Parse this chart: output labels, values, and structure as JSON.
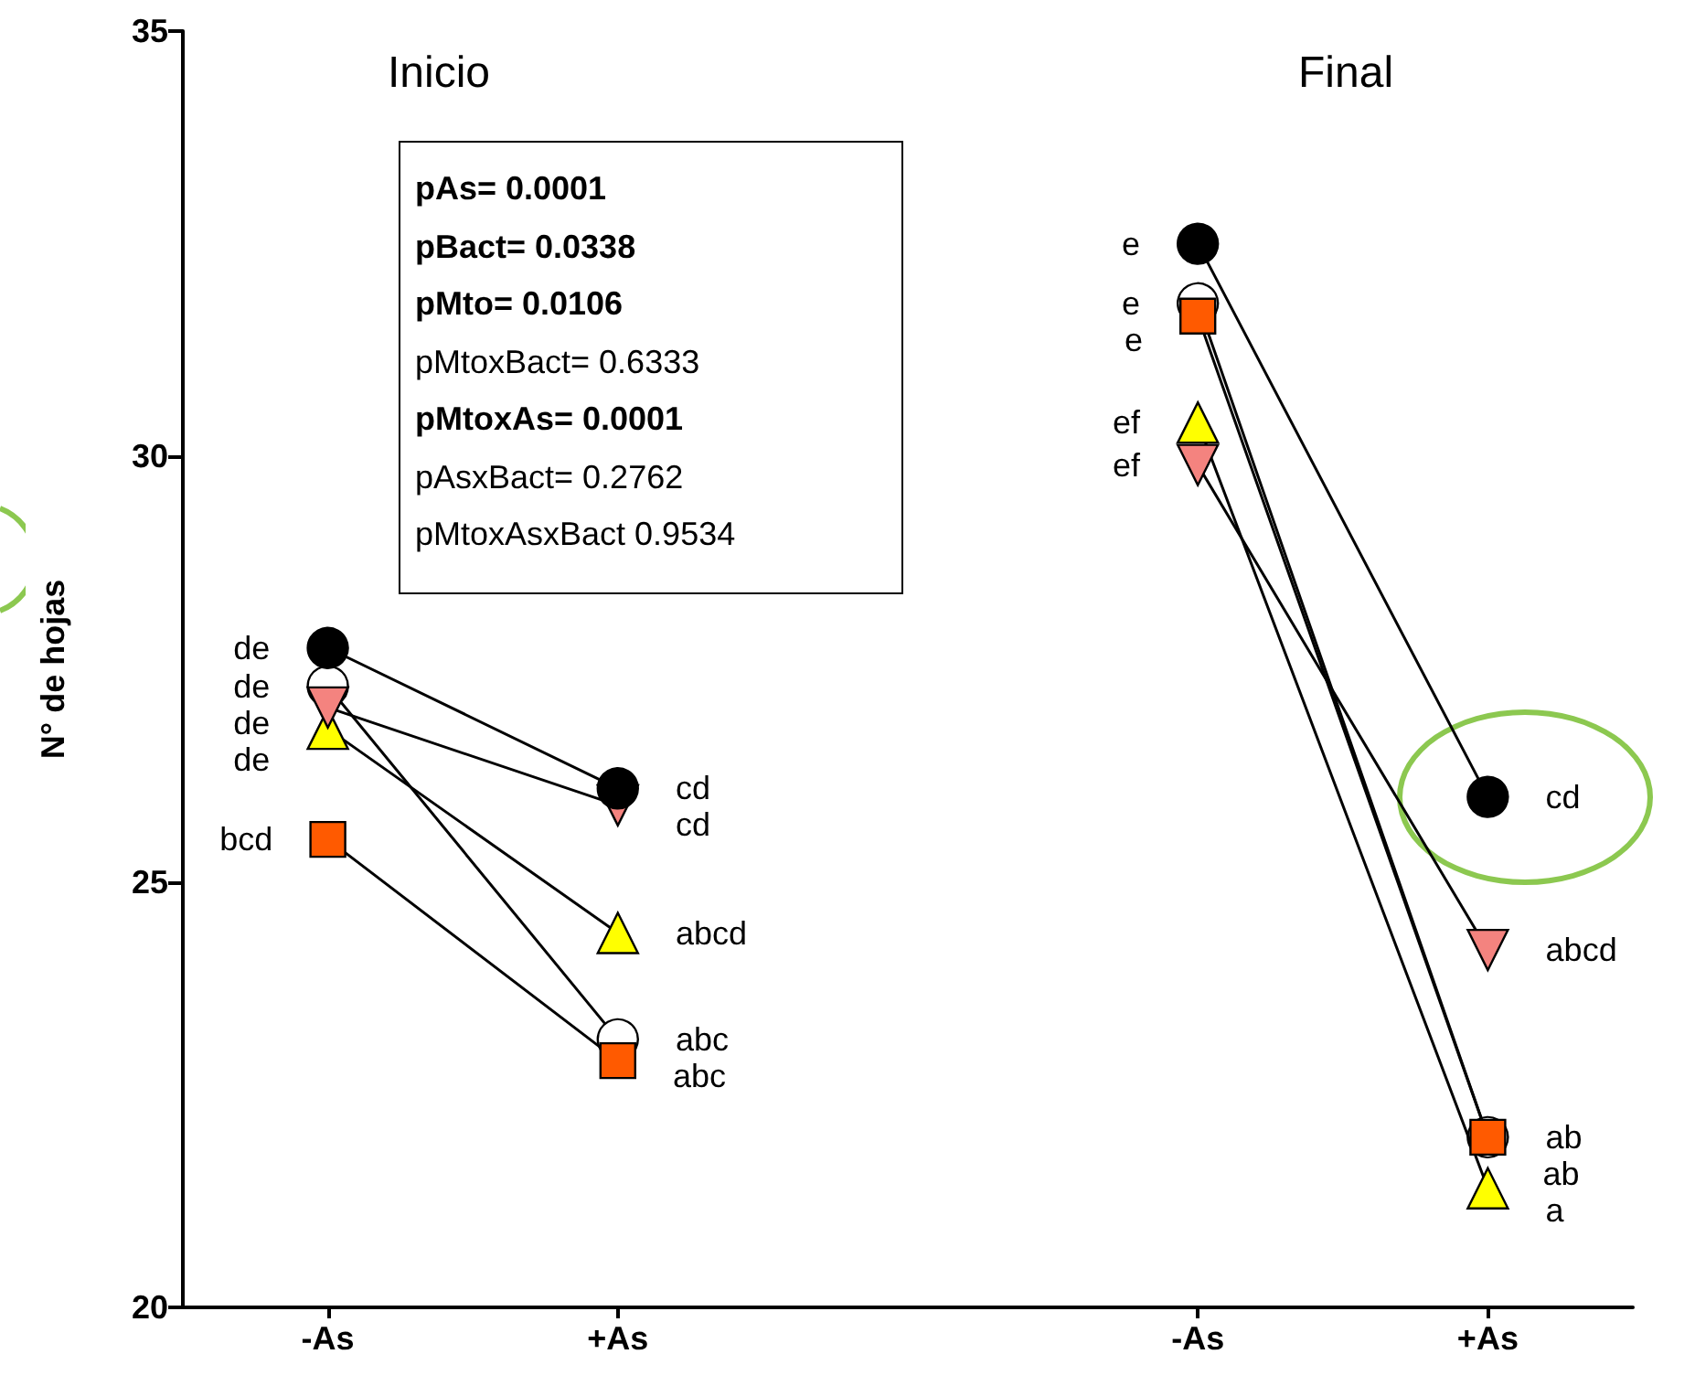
{
  "chart_data": {
    "type": "line",
    "ylabel": "N° de hojas",
    "categories": [
      "-As",
      "+As",
      null,
      "-As",
      "+As"
    ],
    "ylim": [
      20,
      35
    ],
    "yticks": [
      20,
      25,
      30,
      35
    ],
    "grid": false,
    "annotations": [
      "Inicio",
      "Final",
      "pAs= 0.0001",
      "pBact= 0.0338",
      "pMto= 0.0106",
      "pMtoxBact= 0.6333",
      "pMtoxAs= 0.0001",
      "pAsxBact= 0.2762",
      "pMtoxAsxBact  0.9534"
    ],
    "series": [
      {
        "color": "#ffffff",
        "marker": "circle",
        "values": [
          27.3,
          23.15,
          null,
          31.8,
          22.0
        ],
        "value_labels": [
          "de",
          "abc",
          null,
          "e",
          "ab"
        ]
      },
      {
        "color": "#ffff00",
        "marker": "triangle",
        "values": [
          26.8,
          24.4,
          null,
          30.4,
          21.4
        ],
        "value_labels": [
          "de",
          "abcd",
          null,
          "ef",
          "a"
        ]
      },
      {
        "color": "#f4837f",
        "marker": "triangle-down",
        "values": [
          27.05,
          25.9,
          null,
          29.9,
          24.2
        ],
        "value_labels": [
          "de",
          "cd",
          null,
          "ef",
          "abcd"
        ]
      },
      {
        "color": "#000000",
        "marker": "circle",
        "values": [
          27.75,
          26.1,
          null,
          32.5,
          26.0
        ],
        "value_labels": [
          "de",
          "cd",
          null,
          "e",
          "cd"
        ]
      },
      {
        "color": "#ff5a00",
        "marker": "square",
        "values": [
          25.5,
          22.9,
          null,
          31.65,
          22.0
        ],
        "value_labels": [
          "bcd",
          "abc",
          null,
          "e",
          "ab"
        ]
      }
    ]
  }
}
